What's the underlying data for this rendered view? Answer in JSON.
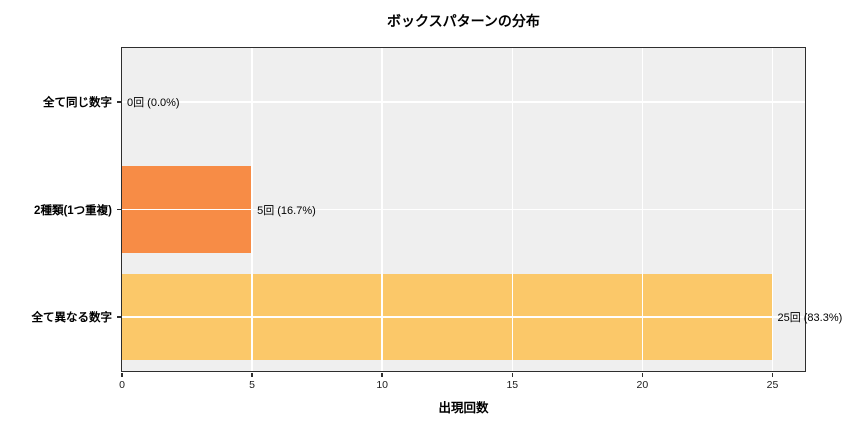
{
  "chart_data": {
    "type": "bar",
    "orientation": "horizontal",
    "title": "ボックスパターンの分布",
    "xlabel": "出現回数",
    "ylabel": "",
    "categories": [
      "全て同じ数字",
      "2種類(1つ重複)",
      "全て異なる数字"
    ],
    "values": [
      0,
      5,
      25
    ],
    "value_labels": [
      "0回 (0.0%)",
      "5回 (16.7%)",
      "25回 (83.3%)"
    ],
    "bar_colors": [
      null,
      "#f78c46",
      "#fbc869"
    ],
    "x_ticks": [
      0,
      5,
      10,
      15,
      20,
      25
    ],
    "xlim": [
      0,
      26.25
    ],
    "grid": true,
    "grid_color": "#ffffff",
    "plot_background": "#efefef",
    "legend": false
  }
}
